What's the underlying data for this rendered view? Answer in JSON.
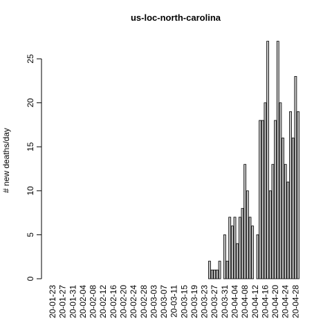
{
  "chart_data": {
    "type": "bar",
    "title": "us-loc-north-carolina",
    "y_label": "# new deaths/day",
    "categories": [
      "20-01-23",
      null,
      null,
      null,
      "20-01-27",
      null,
      null,
      null,
      "20-01-31",
      null,
      null,
      null,
      "20-02-04",
      null,
      null,
      null,
      "20-02-08",
      null,
      null,
      null,
      "20-02-12",
      null,
      null,
      null,
      "20-02-16",
      null,
      null,
      null,
      "20-02-20",
      null,
      null,
      null,
      "20-02-24",
      null,
      null,
      null,
      "20-02-28",
      null,
      null,
      null,
      "20-03-03",
      null,
      null,
      null,
      "20-03-07",
      null,
      null,
      null,
      "20-03-11",
      null,
      null,
      null,
      "20-03-15",
      null,
      null,
      null,
      "20-03-19",
      null,
      null,
      null,
      "20-03-23",
      null,
      null,
      null,
      "20-03-27",
      null,
      null,
      null,
      "20-03-31",
      null,
      null,
      null,
      "20-04-04",
      null,
      null,
      null,
      "20-04-08",
      null,
      null,
      null,
      "20-04-12",
      null,
      null,
      null,
      "20-04-16",
      null,
      null,
      null,
      "20-04-20",
      null,
      null,
      null,
      "20-04-24",
      null,
      null,
      null,
      "20-04-28",
      null
    ],
    "values": [
      0,
      0,
      0,
      0,
      0,
      0,
      0,
      0,
      0,
      0,
      0,
      0,
      0,
      0,
      0,
      0,
      0,
      0,
      0,
      0,
      0,
      0,
      0,
      0,
      0,
      0,
      0,
      0,
      0,
      0,
      0,
      0,
      0,
      0,
      0,
      0,
      0,
      0,
      0,
      0,
      0,
      0,
      0,
      0,
      0,
      0,
      0,
      0,
      0,
      0,
      0,
      0,
      0,
      0,
      0,
      0,
      0,
      0,
      0,
      0,
      0,
      0,
      2,
      1,
      1,
      1,
      2,
      0,
      5,
      2,
      7,
      6,
      7,
      4,
      7,
      8,
      13,
      10,
      7,
      6,
      0,
      5,
      18,
      18,
      20,
      27,
      10,
      13,
      18,
      27,
      20,
      16,
      13,
      11,
      19,
      16,
      23,
      19
    ],
    "color": "#bebebe",
    "ylim": [
      0,
      27
    ],
    "yticks": [
      0,
      5,
      10,
      15,
      20,
      25
    ]
  }
}
